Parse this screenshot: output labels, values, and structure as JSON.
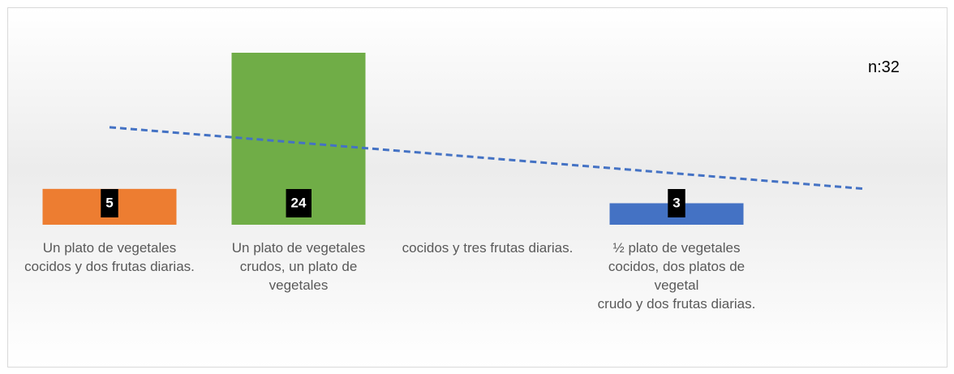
{
  "chart_data": {
    "type": "bar",
    "annotation": "n:32",
    "categories": [
      "Un plato de vegetales cocidos y dos frutas diarias.",
      "Un plato de vegetales crudos, un plato de vegetales",
      "cocidos y tres frutas diarias.",
      "½ plato de vegetales cocidos, dos platos de vegetal\ncrudo y dos frutas diarias."
    ],
    "values": [
      5,
      24,
      null,
      3
    ],
    "colors": [
      "#ed7d31",
      "#70ad47",
      null,
      "#4472c4"
    ],
    "ylim": [
      0,
      24
    ],
    "trendline": {
      "color": "#4472c4",
      "values": [
        13.6,
        5.0
      ]
    }
  }
}
